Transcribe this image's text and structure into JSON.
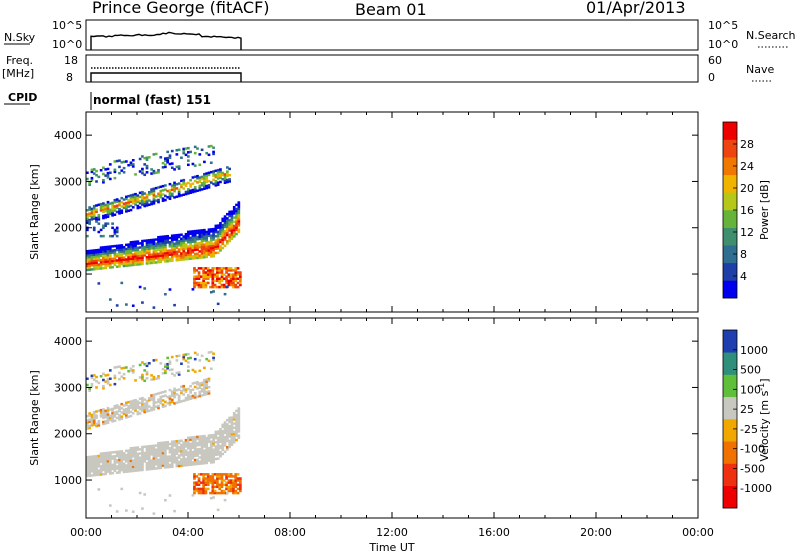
{
  "header": {
    "station": "Prince George (fitACF)",
    "beam": "Beam 01",
    "date": "01/Apr/2013"
  },
  "top_panels": {
    "nsky_label": "N.Sky",
    "nsky_ticks": [
      "10^5",
      "10^0"
    ],
    "nsearch_label": "N.Search",
    "nsearch_ticks": [
      "10^5",
      "10^0"
    ],
    "freq_label": "Freq.",
    "freq_unit": "[MHz]",
    "freq_ticks": [
      "18",
      "8"
    ],
    "nave_label": "Nave",
    "nave_ticks": [
      "60",
      "0"
    ],
    "cpid_label": "CPID",
    "cpid_value": "normal (fast) 151"
  },
  "x_axis": {
    "label": "Time UT",
    "ticks": [
      "00:00",
      "04:00",
      "08:00",
      "12:00",
      "16:00",
      "20:00",
      "00:00"
    ]
  },
  "colors": {
    "power_scale": [
      "#0000ee",
      "#1e3fa8",
      "#2f6d91",
      "#3f8f6f",
      "#66b33a",
      "#b5c81a",
      "#f0b400",
      "#f07800",
      "#ee4410",
      "#ee0000"
    ],
    "velocity_scale": [
      "#1f3fb0",
      "#2f8f7a",
      "#5fbf3a",
      "#c8c8c0",
      "#f0a800",
      "#f07000",
      "#ee3010",
      "#ee0000"
    ]
  },
  "chart_data": [
    {
      "type": "heatmap",
      "title": "",
      "xlabel": "Time UT",
      "ylabel": "Slant Range [km]",
      "xlim": [
        "00:00",
        "24:00"
      ],
      "ylim": [
        180,
        4500
      ],
      "yticks": [
        1000,
        2000,
        3000,
        4000
      ],
      "data_extent_time": [
        "00:00",
        "06:00"
      ],
      "colorbar": {
        "label": "Power [dB]",
        "ticks": [
          "28",
          "24",
          "20",
          "16",
          "12",
          "8",
          "4"
        ],
        "range": [
          0,
          32
        ]
      },
      "features": [
        {
          "start": "00:00",
          "end": "06:00",
          "range_start_km": 1150,
          "range_end_km": 1800,
          "peak_db": 28
        },
        {
          "start": "00:00",
          "end": "06:00",
          "range_start_km": 2150,
          "range_end_km": 3400,
          "peak_db": 22
        },
        {
          "start": "04:00",
          "end": "06:00",
          "range_start_km": 700,
          "range_end_km": 1100,
          "peak_db": 30
        }
      ]
    },
    {
      "type": "heatmap",
      "title": "",
      "xlabel": "Time UT",
      "ylabel": "Slant Range [km]",
      "xlim": [
        "00:00",
        "24:00"
      ],
      "ylim": [
        180,
        4500
      ],
      "yticks": [
        1000,
        2000,
        3000,
        4000
      ],
      "data_extent_time": [
        "00:00",
        "06:00"
      ],
      "colorbar": {
        "label": "Velocity [m s^-1]",
        "ticks": [
          "1000",
          "500",
          "100",
          "25",
          "-25",
          "-100",
          "-500",
          "-1000"
        ],
        "range": [
          -1500,
          1500
        ]
      },
      "features": [
        {
          "start": "00:00",
          "end": "06:00",
          "range_start_km": 1150,
          "range_end_km": 1800,
          "class": "ground scatter"
        },
        {
          "start": "00:00",
          "end": "04:30",
          "range_start_km": 2150,
          "range_end_km": 3300,
          "class": "ground scatter"
        },
        {
          "start": "04:00",
          "end": "06:00",
          "range_start_km": 700,
          "range_end_km": 1100,
          "velocity": -400
        }
      ]
    }
  ]
}
